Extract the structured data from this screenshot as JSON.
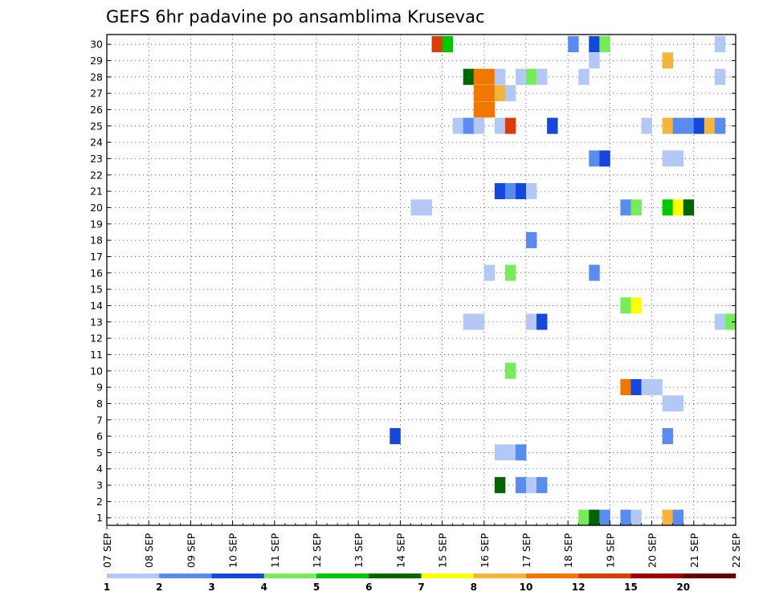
{
  "chart_data": {
    "type": "heatmap",
    "title": "GEFS 6hr padavine po ansamblima Krusevac",
    "xlabel": "",
    "ylabel": "",
    "x_tick_labels": [
      "07 SEP",
      "08 SEP",
      "09 SEP",
      "10 SEP",
      "11 SEP",
      "12 SEP",
      "13 SEP",
      "14 SEP",
      "15 SEP",
      "16 SEP",
      "17 SEP",
      "18 SEP",
      "19 SEP",
      "20 SEP",
      "21 SEP",
      "22 SEP"
    ],
    "y_tick_labels": [
      "1",
      "2",
      "3",
      "4",
      "5",
      "6",
      "7",
      "8",
      "9",
      "10",
      "11",
      "12",
      "13",
      "14",
      "15",
      "16",
      "17",
      "18",
      "19",
      "20",
      "21",
      "22",
      "23",
      "24",
      "25",
      "26",
      "27",
      "28",
      "29",
      "30"
    ],
    "xlim": [
      0,
      60
    ],
    "ylim": [
      0,
      30
    ],
    "grid": true,
    "x_unit": "6-hour step since 07 SEP 00Z",
    "color_levels": [
      1,
      2,
      3,
      4,
      5,
      6,
      7,
      8,
      10,
      12,
      15,
      20
    ],
    "legend_labels": [
      "1",
      "2",
      "3",
      "4",
      "5",
      "6",
      "7",
      "8",
      "10",
      "12",
      "15",
      "20"
    ],
    "legend_colors": [
      "#b4c8f6",
      "#5a8cf0",
      "#1448dc",
      "#78eb5a",
      "#00c800",
      "#006400",
      "#ffff00",
      "#f5b43c",
      "#f07800",
      "#dc3c0a",
      "#a00000",
      "#640000"
    ],
    "cells": [
      {
        "m": 30,
        "t": 32,
        "c": "#dc3c0a"
      },
      {
        "m": 30,
        "t": 33,
        "c": "#00c800"
      },
      {
        "m": 30,
        "t": 45,
        "c": "#5a8cf0"
      },
      {
        "m": 30,
        "t": 47,
        "c": "#1448dc"
      },
      {
        "m": 30,
        "t": 48,
        "c": "#78eb5a"
      },
      {
        "m": 30,
        "t": 59,
        "c": "#b4c8f6"
      },
      {
        "m": 29,
        "t": 47,
        "c": "#b4c8f6"
      },
      {
        "m": 29,
        "t": 54,
        "c": "#f5b43c"
      },
      {
        "m": 28,
        "t": 35,
        "c": "#006400"
      },
      {
        "m": 28,
        "t": 36,
        "c": "#f07800"
      },
      {
        "m": 28,
        "t": 37,
        "c": "#f07800"
      },
      {
        "m": 28,
        "t": 38,
        "c": "#b4c8f6"
      },
      {
        "m": 28,
        "t": 40,
        "c": "#b4c8f6"
      },
      {
        "m": 28,
        "t": 41,
        "c": "#78eb5a"
      },
      {
        "m": 28,
        "t": 42,
        "c": "#b4c8f6"
      },
      {
        "m": 28,
        "t": 46,
        "c": "#b4c8f6"
      },
      {
        "m": 28,
        "t": 59,
        "c": "#b4c8f6"
      },
      {
        "m": 27,
        "t": 36,
        "c": "#f07800"
      },
      {
        "m": 27,
        "t": 37,
        "c": "#f07800"
      },
      {
        "m": 27,
        "t": 38,
        "c": "#f5b43c"
      },
      {
        "m": 27,
        "t": 39,
        "c": "#b4c8f6"
      },
      {
        "m": 26,
        "t": 36,
        "c": "#f07800"
      },
      {
        "m": 26,
        "t": 37,
        "c": "#f07800"
      },
      {
        "m": 25,
        "t": 34,
        "c": "#b4c8f6"
      },
      {
        "m": 25,
        "t": 35,
        "c": "#5a8cf0"
      },
      {
        "m": 25,
        "t": 36,
        "c": "#b4c8f6"
      },
      {
        "m": 25,
        "t": 38,
        "c": "#b4c8f6"
      },
      {
        "m": 25,
        "t": 39,
        "c": "#dc3c0a"
      },
      {
        "m": 25,
        "t": 43,
        "c": "#1448dc"
      },
      {
        "m": 25,
        "t": 52,
        "c": "#b4c8f6"
      },
      {
        "m": 25,
        "t": 54,
        "c": "#f5b43c"
      },
      {
        "m": 25,
        "t": 55,
        "c": "#5a8cf0"
      },
      {
        "m": 25,
        "t": 56,
        "c": "#5a8cf0"
      },
      {
        "m": 25,
        "t": 57,
        "c": "#1448dc"
      },
      {
        "m": 25,
        "t": 58,
        "c": "#f5b43c"
      },
      {
        "m": 25,
        "t": 59,
        "c": "#5a8cf0"
      },
      {
        "m": 23,
        "t": 47,
        "c": "#5a8cf0"
      },
      {
        "m": 23,
        "t": 48,
        "c": "#1448dc"
      },
      {
        "m": 23,
        "t": 54,
        "c": "#b4c8f6"
      },
      {
        "m": 23,
        "t": 55,
        "c": "#b4c8f6"
      },
      {
        "m": 21,
        "t": 38,
        "c": "#1448dc"
      },
      {
        "m": 21,
        "t": 39,
        "c": "#5a8cf0"
      },
      {
        "m": 21,
        "t": 40,
        "c": "#1448dc"
      },
      {
        "m": 21,
        "t": 41,
        "c": "#b4c8f6"
      },
      {
        "m": 20,
        "t": 30,
        "c": "#b4c8f6"
      },
      {
        "m": 20,
        "t": 31,
        "c": "#b4c8f6"
      },
      {
        "m": 20,
        "t": 50,
        "c": "#5a8cf0"
      },
      {
        "m": 20,
        "t": 51,
        "c": "#78eb5a"
      },
      {
        "m": 20,
        "t": 54,
        "c": "#00c800"
      },
      {
        "m": 20,
        "t": 55,
        "c": "#ffff00"
      },
      {
        "m": 20,
        "t": 56,
        "c": "#006400"
      },
      {
        "m": 18,
        "t": 41,
        "c": "#5a8cf0"
      },
      {
        "m": 16,
        "t": 37,
        "c": "#b4c8f6"
      },
      {
        "m": 16,
        "t": 39,
        "c": "#78eb5a"
      },
      {
        "m": 16,
        "t": 47,
        "c": "#5a8cf0"
      },
      {
        "m": 14,
        "t": 50,
        "c": "#78eb5a"
      },
      {
        "m": 14,
        "t": 51,
        "c": "#ffff00"
      },
      {
        "m": 13,
        "t": 35,
        "c": "#b4c8f6"
      },
      {
        "m": 13,
        "t": 36,
        "c": "#b4c8f6"
      },
      {
        "m": 13,
        "t": 41,
        "c": "#b4c8f6"
      },
      {
        "m": 13,
        "t": 42,
        "c": "#1448dc"
      },
      {
        "m": 13,
        "t": 59,
        "c": "#b4c8f6"
      },
      {
        "m": 13,
        "t": 60,
        "c": "#78eb5a"
      },
      {
        "m": 10,
        "t": 39,
        "c": "#78eb5a"
      },
      {
        "m": 9,
        "t": 50,
        "c": "#f07800"
      },
      {
        "m": 9,
        "t": 51,
        "c": "#1448dc"
      },
      {
        "m": 9,
        "t": 52,
        "c": "#b4c8f6"
      },
      {
        "m": 9,
        "t": 53,
        "c": "#b4c8f6"
      },
      {
        "m": 8,
        "t": 54,
        "c": "#b4c8f6"
      },
      {
        "m": 8,
        "t": 55,
        "c": "#b4c8f6"
      },
      {
        "m": 6,
        "t": 28,
        "c": "#1448dc"
      },
      {
        "m": 6,
        "t": 54,
        "c": "#5a8cf0"
      },
      {
        "m": 5,
        "t": 38,
        "c": "#b4c8f6"
      },
      {
        "m": 5,
        "t": 39,
        "c": "#b4c8f6"
      },
      {
        "m": 5,
        "t": 40,
        "c": "#5a8cf0"
      },
      {
        "m": 3,
        "t": 38,
        "c": "#006400"
      },
      {
        "m": 3,
        "t": 40,
        "c": "#5a8cf0"
      },
      {
        "m": 3,
        "t": 41,
        "c": "#b4c8f6"
      },
      {
        "m": 3,
        "t": 42,
        "c": "#5a8cf0"
      },
      {
        "m": 1,
        "t": 46,
        "c": "#78eb5a"
      },
      {
        "m": 1,
        "t": 47,
        "c": "#006400"
      },
      {
        "m": 1,
        "t": 48,
        "c": "#5a8cf0"
      },
      {
        "m": 1,
        "t": 50,
        "c": "#5a8cf0"
      },
      {
        "m": 1,
        "t": 51,
        "c": "#b4c8f6"
      },
      {
        "m": 1,
        "t": 54,
        "c": "#f5b43c"
      },
      {
        "m": 1,
        "t": 55,
        "c": "#5a8cf0"
      }
    ]
  }
}
